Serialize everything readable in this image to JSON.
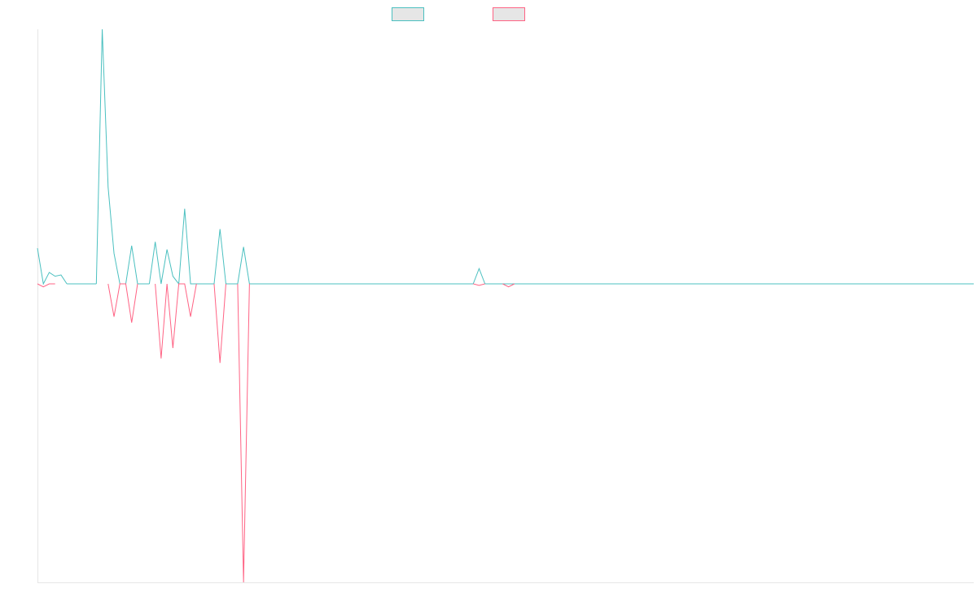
{
  "chart_data": {
    "type": "line",
    "title": "",
    "xlabel": "",
    "ylabel": "",
    "grid": false,
    "legend_position": "top-center",
    "x_count": 160,
    "ylim": [
      -1,
      1
    ],
    "series": [
      {
        "color": "#4bc0c0",
        "fill": "#e6e6e6",
        "values": [
          [
            0,
            0.14
          ],
          [
            1,
            0.0
          ],
          [
            2,
            0.045
          ],
          [
            3,
            0.03
          ],
          [
            4,
            0.035
          ],
          [
            5,
            0.0
          ],
          [
            10,
            0.0
          ],
          [
            11,
            1.0
          ],
          [
            12,
            0.38
          ],
          [
            13,
            0.12
          ],
          [
            14,
            0.0
          ],
          [
            15,
            0.0
          ],
          [
            16,
            0.15
          ],
          [
            17,
            0.0
          ],
          [
            19,
            0.0
          ],
          [
            20,
            0.165
          ],
          [
            21,
            0.0
          ],
          [
            22,
            0.135
          ],
          [
            23,
            0.03
          ],
          [
            24,
            0.0
          ],
          [
            25,
            0.295
          ],
          [
            26,
            0.0
          ],
          [
            27,
            0.0
          ],
          [
            28,
            0.0
          ],
          [
            30,
            0.0
          ],
          [
            31,
            0.215
          ],
          [
            32,
            0.0
          ],
          [
            34,
            0.0
          ],
          [
            35,
            0.145
          ],
          [
            36,
            0.0
          ],
          [
            74,
            0.0
          ],
          [
            75,
            0.06
          ],
          [
            76,
            0.0
          ],
          [
            159,
            0.0
          ]
        ]
      },
      {
        "color": "#ff6384",
        "fill": "#e6e6e6",
        "values": [
          [
            0,
            0.0
          ],
          [
            1,
            -0.01
          ],
          [
            2,
            0.0
          ],
          [
            3,
            0.0
          ],
          [
            12,
            0.0
          ],
          [
            13,
            -0.11
          ],
          [
            14,
            0.0
          ],
          [
            15,
            0.0
          ],
          [
            16,
            -0.13
          ],
          [
            17,
            0.0
          ],
          [
            20,
            0.0
          ],
          [
            21,
            -0.25
          ],
          [
            22,
            0.0
          ],
          [
            23,
            -0.215
          ],
          [
            24,
            0.0
          ],
          [
            25,
            0.0
          ],
          [
            26,
            -0.11
          ],
          [
            27,
            0.0
          ],
          [
            30,
            0.0
          ],
          [
            31,
            -0.265
          ],
          [
            32,
            0.0
          ],
          [
            34,
            0.0
          ],
          [
            35,
            -1.0
          ],
          [
            36,
            0.0
          ],
          [
            74,
            0.0
          ],
          [
            75,
            -0.005
          ],
          [
            76,
            0.0
          ],
          [
            79,
            0.0
          ],
          [
            80,
            -0.01
          ],
          [
            81,
            0.0
          ]
        ]
      }
    ]
  }
}
